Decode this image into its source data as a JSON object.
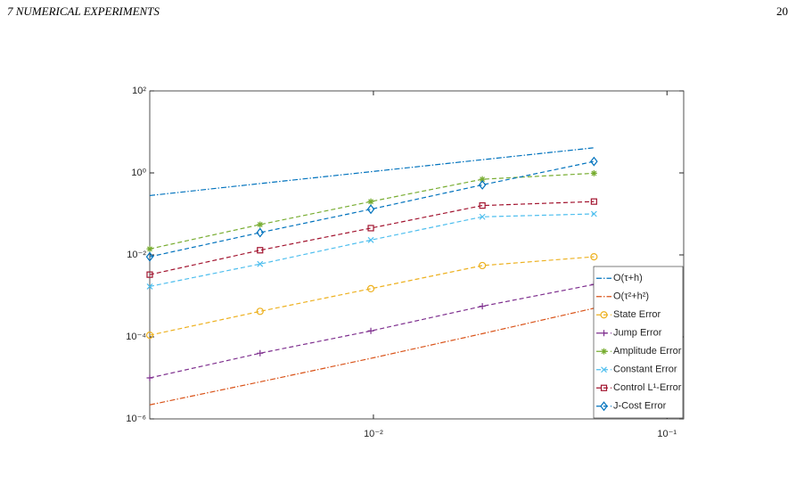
{
  "header": {
    "section": "7  NUMERICAL EXPERIMENTS",
    "page": "20"
  },
  "chart_data": {
    "type": "line",
    "log_x": true,
    "log_y": true,
    "grid": false,
    "legend": "lower right",
    "x": [
      0.00173,
      0.00411,
      0.0098,
      0.0235,
      0.0564
    ],
    "xlim": [
      0.00173,
      0.114
    ],
    "xticks": [
      {
        "value": 0.01,
        "label": "10⁻²"
      },
      {
        "value": 0.1,
        "label": "10⁻¹"
      }
    ],
    "ylim": [
      1e-06,
      100
    ],
    "yticks": [
      {
        "value": 1e-06,
        "label": "10⁻⁶"
      },
      {
        "value": 0.0001,
        "label": "10⁻⁴"
      },
      {
        "value": 0.01,
        "label": "10⁻²"
      },
      {
        "value": 1,
        "label": "10⁰"
      },
      {
        "value": 100,
        "label": "10²"
      }
    ],
    "series": [
      {
        "name": "O(τ+h)",
        "color": "#0072BD",
        "linestyle": "dashdot",
        "marker": "none",
        "values": [
          0.28,
          0.55,
          1.07,
          2.1,
          4.1
        ]
      },
      {
        "name": "O(τ²+h²)",
        "color": "#D95319",
        "linestyle": "dashdot",
        "marker": "none",
        "values": [
          2.2e-06,
          8e-06,
          3e-05,
          0.00012,
          0.0005
        ]
      },
      {
        "name": "State Error",
        "color": "#EDB120",
        "linestyle": "dashed",
        "marker": "circle",
        "values": [
          0.00011,
          0.00042,
          0.0015,
          0.0055,
          0.009
        ]
      },
      {
        "name": "Jump Error",
        "color": "#7E2F8E",
        "linestyle": "dashed",
        "marker": "plus",
        "values": [
          1e-05,
          4e-05,
          0.00014,
          0.00056,
          0.0019
        ]
      },
      {
        "name": "Amplitude Error",
        "color": "#77AC30",
        "linestyle": "dashed",
        "marker": "asterisk",
        "values": [
          0.014,
          0.055,
          0.2,
          0.7,
          0.98
        ]
      },
      {
        "name": "Constant Error",
        "color": "#4DBEEE",
        "linestyle": "dashed",
        "marker": "x",
        "values": [
          0.0017,
          0.006,
          0.023,
          0.085,
          0.1
        ]
      },
      {
        "name": "Control L¹-Error",
        "color": "#A2142F",
        "linestyle": "dashed",
        "marker": "square",
        "values": [
          0.0033,
          0.013,
          0.045,
          0.16,
          0.2
        ]
      },
      {
        "name": "J-Cost Error",
        "color": "#0072BD",
        "linestyle": "dashed",
        "marker": "diamond",
        "values": [
          0.009,
          0.035,
          0.13,
          0.51,
          1.9
        ]
      }
    ]
  }
}
